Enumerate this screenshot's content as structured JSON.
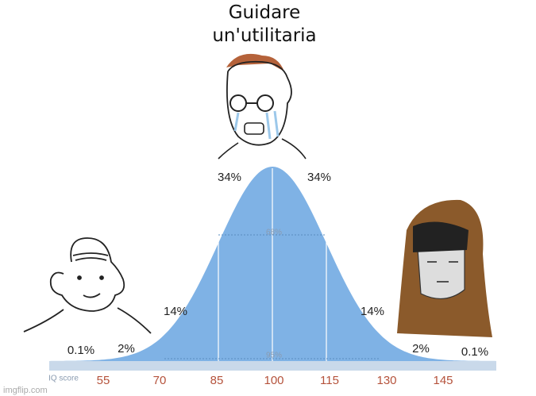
{
  "caption": "Guidare un'utilitaria",
  "bands": [
    "34%",
    "34%",
    "68%",
    "14%",
    "14%",
    "2%",
    "2%",
    "0.1%",
    "0.1%",
    "95%"
  ],
  "axis": {
    "label": "IQ score",
    "ticks": [
      "55",
      "70",
      "85",
      "100",
      "115",
      "130",
      "145"
    ]
  },
  "watermark": "imgflip.com"
}
